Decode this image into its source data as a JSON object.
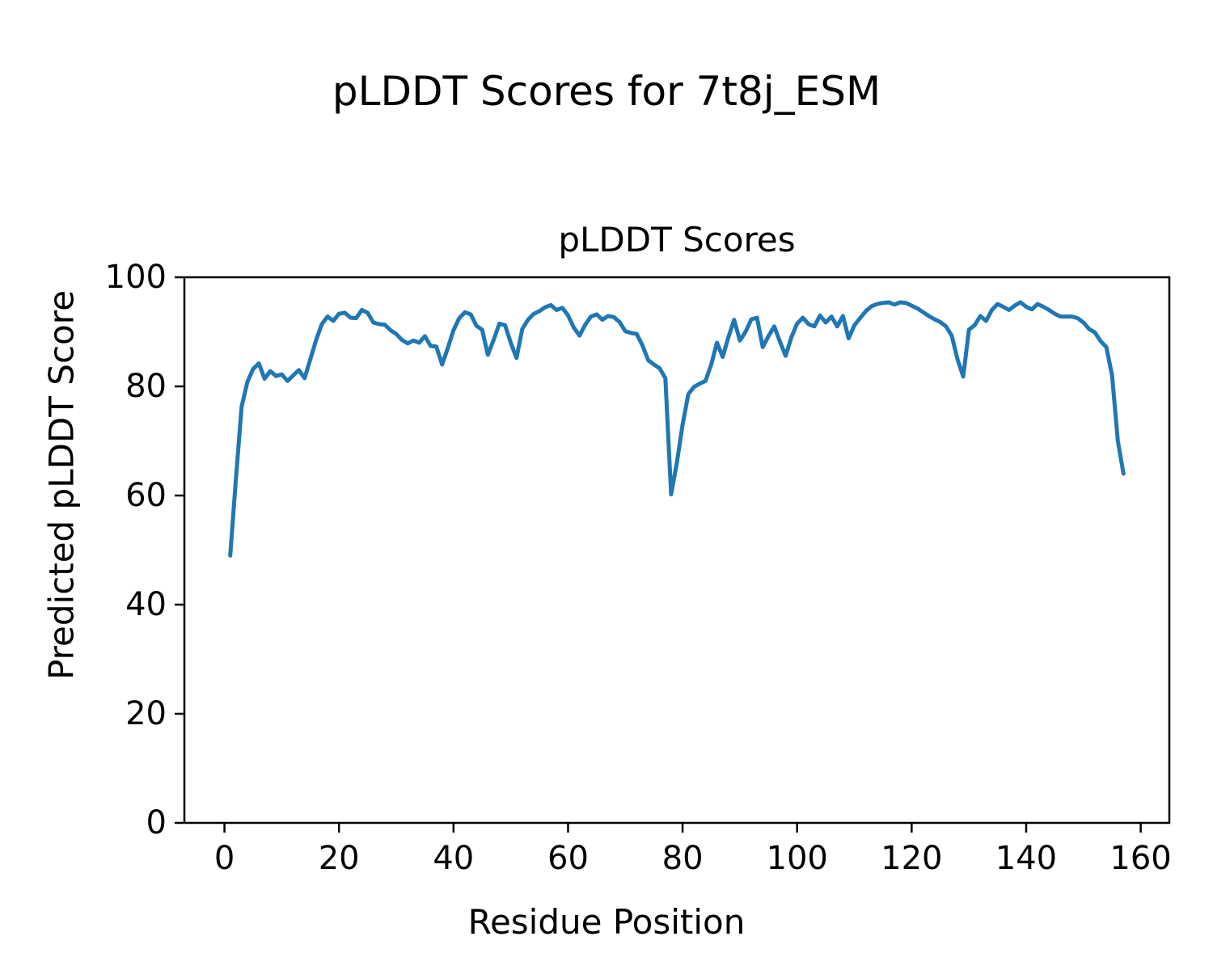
{
  "figure": {
    "suptitle": "pLDDT Scores for 7t8j_ESM",
    "background": "#ffffff"
  },
  "chart_data": {
    "type": "line",
    "title": "pLDDT Scores",
    "xlabel": "Residue Position",
    "ylabel": "Predicted pLDDT Score",
    "xlim": [
      -7,
      165
    ],
    "ylim": [
      0,
      100
    ],
    "xticks": [
      0,
      20,
      40,
      60,
      80,
      100,
      120,
      140,
      160
    ],
    "yticks": [
      0,
      20,
      40,
      60,
      80,
      100
    ],
    "grid": false,
    "legend": null,
    "line_color": "#1f77b4",
    "series": [
      {
        "name": "pLDDT",
        "x_start": 1,
        "x_step": 1,
        "values": [
          49.0,
          63.0,
          76.3,
          80.8,
          83.2,
          84.2,
          81.4,
          82.8,
          81.9,
          82.2,
          81.0,
          82.0,
          83.0,
          81.5,
          85.0,
          88.5,
          91.4,
          92.8,
          92.0,
          93.3,
          93.5,
          92.6,
          92.5,
          94.0,
          93.5,
          91.7,
          91.4,
          91.3,
          90.3,
          89.6,
          88.5,
          87.9,
          88.4,
          88.0,
          89.2,
          87.4,
          87.3,
          84.0,
          87.0,
          90.3,
          92.5,
          93.6,
          93.2,
          91.1,
          90.4,
          85.8,
          88.5,
          91.5,
          91.2,
          88.0,
          85.2,
          90.5,
          92.2,
          93.3,
          93.8,
          94.5,
          94.9,
          94.0,
          94.4,
          93.0,
          90.8,
          89.3,
          91.3,
          92.8,
          93.2,
          92.2,
          92.9,
          92.7,
          91.8,
          90.1,
          89.8,
          89.6,
          87.5,
          84.8,
          84.0,
          83.3,
          81.5,
          60.2,
          66.0,
          73.0,
          78.6,
          79.9,
          80.5,
          81.0,
          84.0,
          88.0,
          85.4,
          89.0,
          92.2,
          88.4,
          90.0,
          92.3,
          92.6,
          87.2,
          89.2,
          91.0,
          88.2,
          85.6,
          89.0,
          91.5,
          92.6,
          91.4,
          91.0,
          93.0,
          91.7,
          92.8,
          91.0,
          92.9,
          88.8,
          91.2,
          92.5,
          93.8,
          94.7,
          95.1,
          95.3,
          95.4,
          95.0,
          95.4,
          95.3,
          94.8,
          94.3,
          93.6,
          92.9,
          92.3,
          91.8,
          91.0,
          89.3,
          85.0,
          81.8,
          90.4,
          91.2,
          92.9,
          92.0,
          94.0,
          95.1,
          94.6,
          94.0,
          94.8,
          95.4,
          94.6,
          94.1,
          95.1,
          94.6,
          94.0,
          93.3,
          92.8,
          92.8,
          92.8,
          92.5,
          91.7,
          90.5,
          89.9,
          88.3,
          87.2,
          82.0,
          70.0,
          64.0
        ]
      }
    ]
  }
}
